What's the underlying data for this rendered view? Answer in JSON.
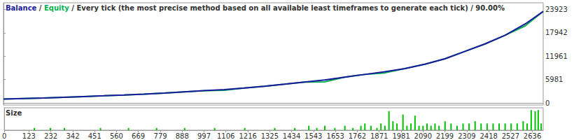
{
  "chart_data": [
    {
      "type": "line",
      "title": "Balance / Equity / Every tick (the most precise method based on all available least timeframes to generate each tick) / 90.00%",
      "x": [
        0,
        100,
        200,
        300,
        400,
        500,
        600,
        700,
        800,
        900,
        1000,
        1100,
        1200,
        1300,
        1400,
        1500,
        1600,
        1700,
        1800,
        1900,
        2000,
        2100,
        2200,
        2300,
        2400,
        2500,
        2600,
        2690
      ],
      "series": [
        {
          "name": "Equity",
          "color": "#00b050",
          "values": [
            1000,
            1150,
            1300,
            1480,
            1660,
            1850,
            2050,
            2280,
            2550,
            2850,
            3150,
            3250,
            3850,
            4300,
            4800,
            5350,
            5400,
            6600,
            7300,
            7700,
            8800,
            9900,
            11300,
            13200,
            15100,
            17300,
            19700,
            23400
          ]
        },
        {
          "name": "Balance",
          "color": "#1a1a9c",
          "values": [
            1000,
            1150,
            1300,
            1480,
            1660,
            1850,
            2050,
            2280,
            2550,
            2850,
            3150,
            3450,
            3850,
            4300,
            4800,
            5350,
            5900,
            6600,
            7300,
            8000,
            8800,
            9900,
            11300,
            13200,
            15100,
            17300,
            20200,
            23400
          ]
        }
      ],
      "xlim": [
        0,
        2690
      ],
      "ylim": [
        -500,
        25600
      ],
      "yticks": [
        0,
        5981,
        11961,
        17942,
        23923
      ],
      "grid": false,
      "tick_labels": "y"
    },
    {
      "type": "bar",
      "title": "Size",
      "x": [
        150,
        230,
        300,
        480,
        620,
        760,
        900,
        1050,
        1200,
        1350,
        1450,
        1520,
        1560,
        1600,
        1650,
        1700,
        1740,
        1780,
        1800,
        1830,
        1860,
        1880,
        1900,
        1920,
        1940,
        1960,
        1990,
        2010,
        2030,
        2050,
        2070,
        2090,
        2110,
        2130,
        2150,
        2170,
        2200,
        2230,
        2260,
        2290,
        2320,
        2350,
        2380,
        2410,
        2440,
        2470,
        2500,
        2530,
        2560,
        2590,
        2610,
        2630,
        2650,
        2665,
        2680
      ],
      "values": [
        1,
        1,
        1,
        1,
        1,
        1,
        1,
        1,
        1,
        1,
        1,
        2,
        1,
        2,
        1,
        2,
        1,
        2,
        3,
        2,
        1,
        3,
        2,
        8.5,
        4,
        3,
        7,
        2,
        3,
        6.5,
        2,
        2,
        3,
        2,
        3,
        2,
        4,
        3,
        2,
        3,
        3,
        4,
        3,
        3,
        3,
        3,
        3,
        3,
        3,
        4,
        3,
        9,
        8.5,
        9,
        3
      ],
      "color": "#00c000",
      "xlim": [
        0,
        2690
      ],
      "ylim": [
        0,
        10
      ],
      "xticks": [
        0,
        123,
        232,
        342,
        451,
        560,
        669,
        779,
        888,
        997,
        1106,
        1216,
        1325,
        1434,
        1543,
        1653,
        1762,
        1871,
        1981,
        2090,
        2199,
        2309,
        2418,
        2527,
        2636
      ],
      "grid": false,
      "tick_labels": "x"
    }
  ]
}
